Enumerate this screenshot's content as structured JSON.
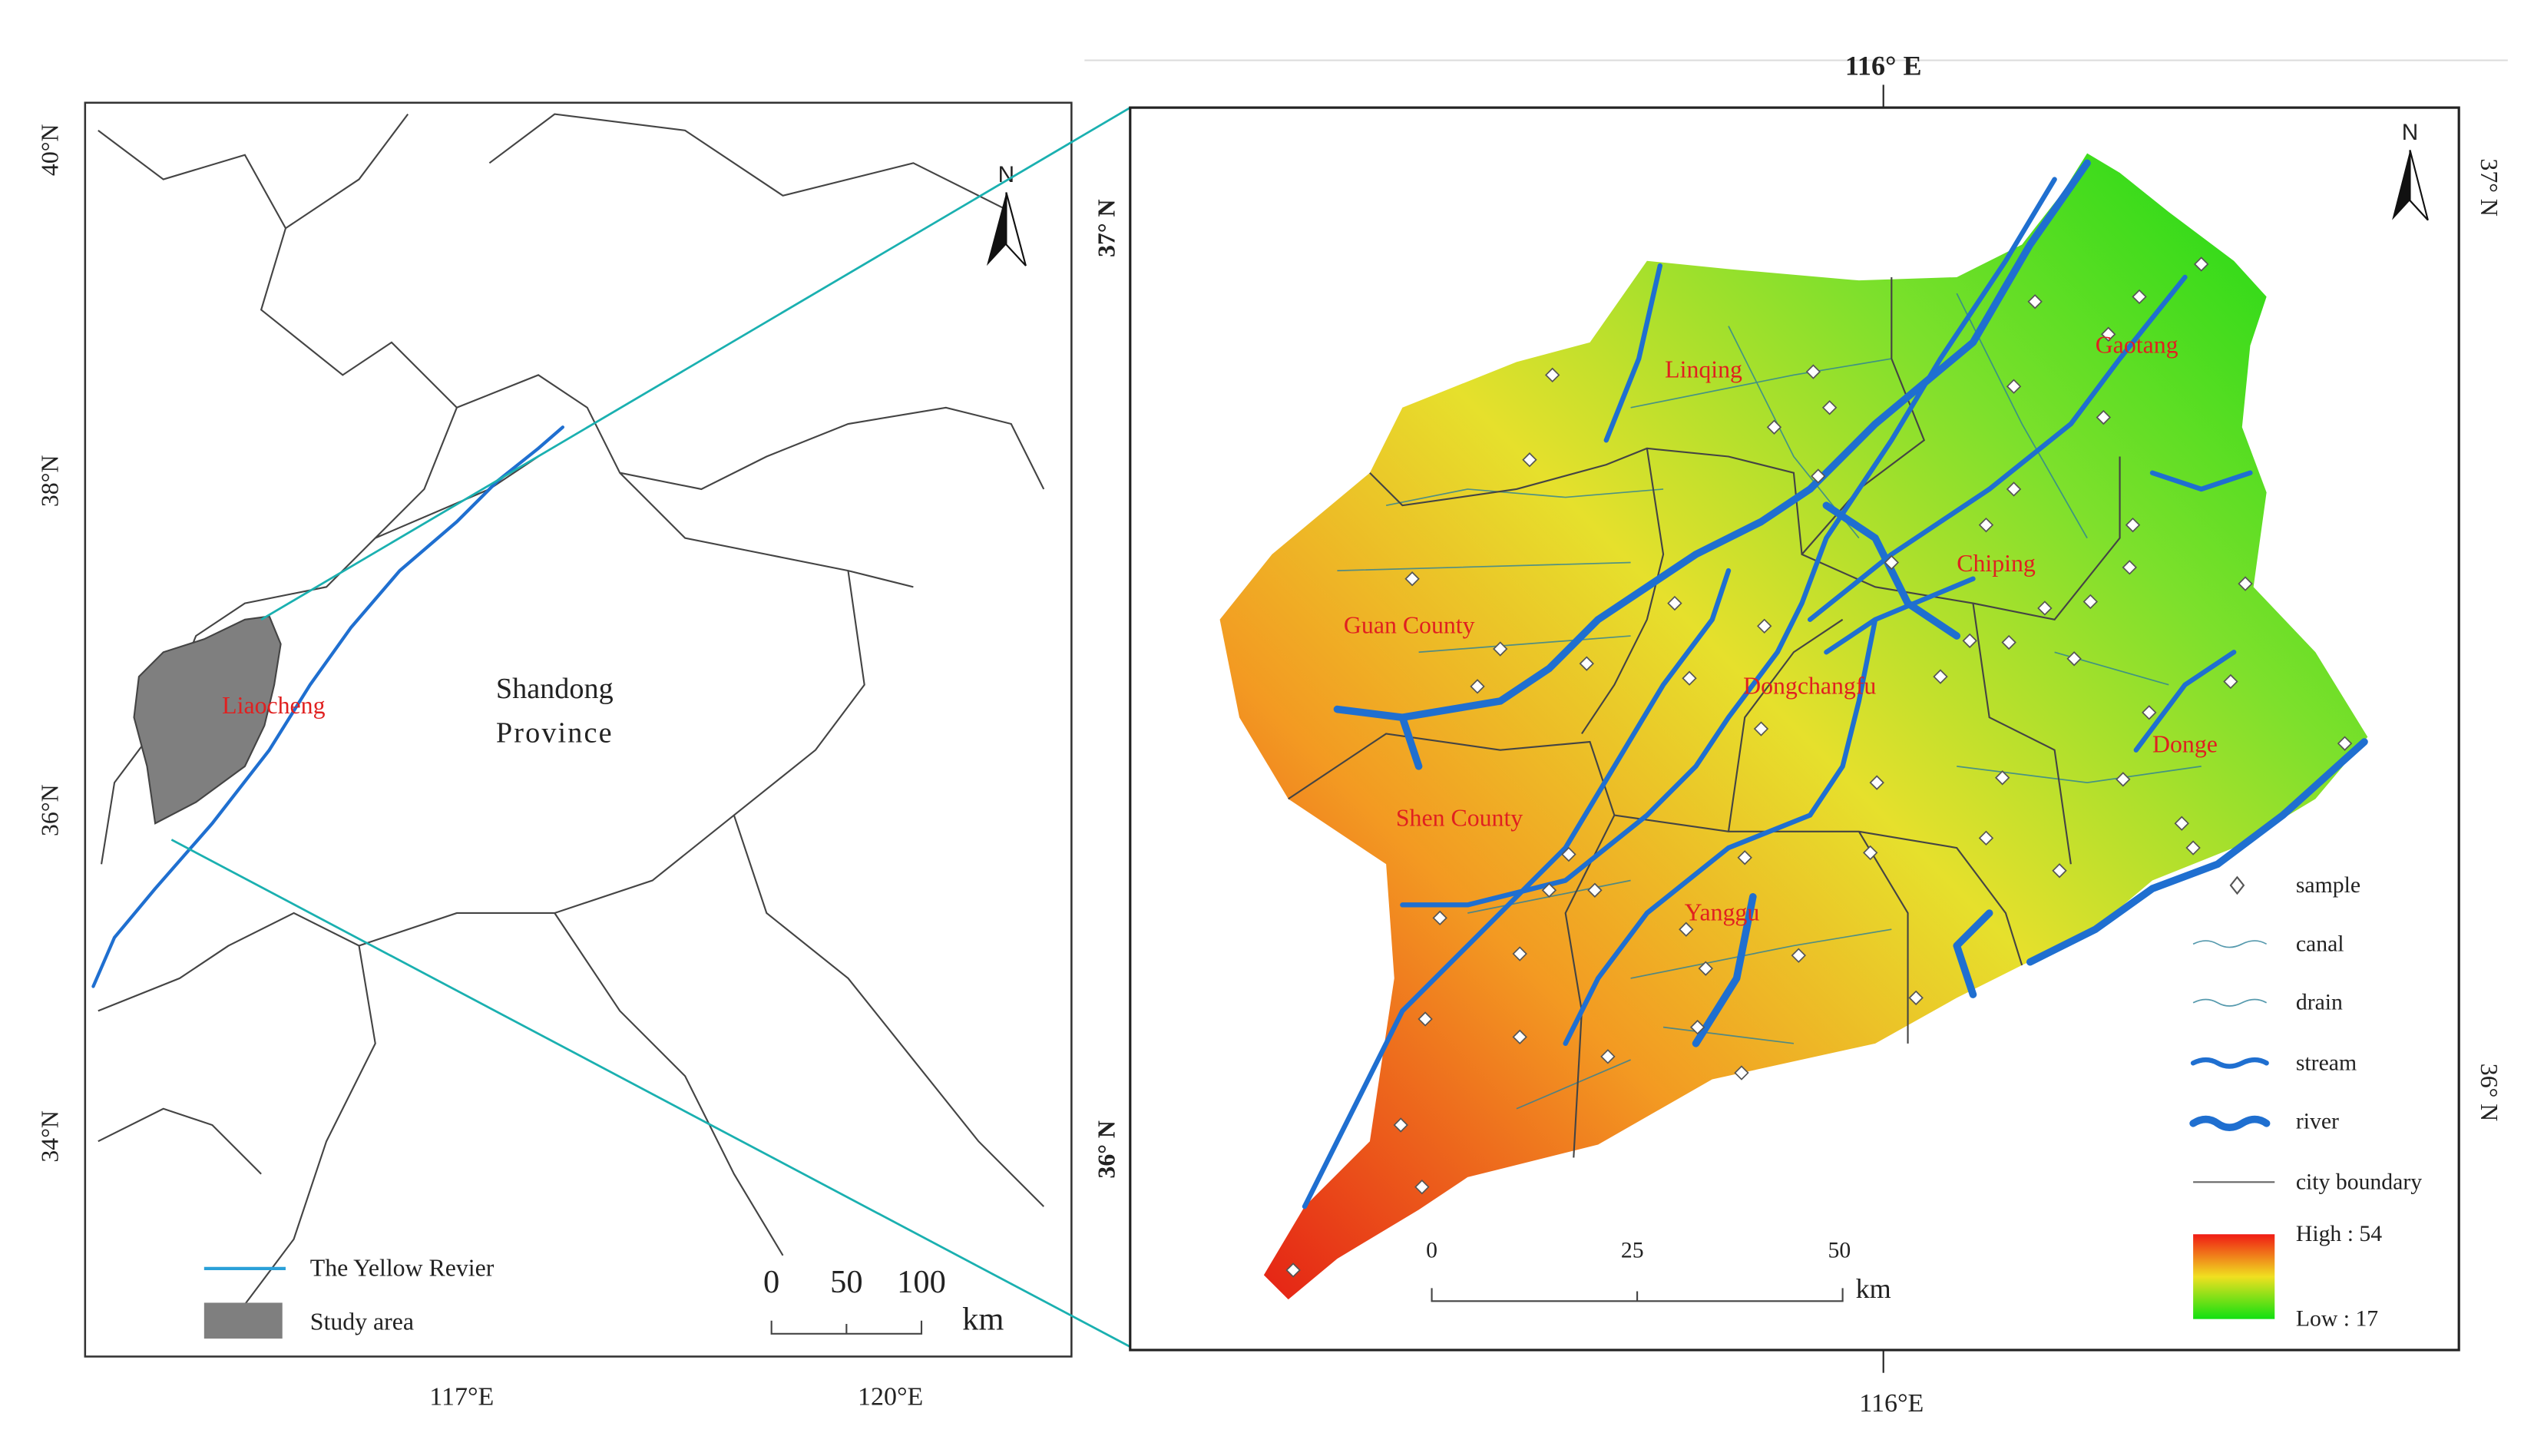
{
  "left_map": {
    "lat_labels": [
      "40°N",
      "38°N",
      "36°N",
      "34°N"
    ],
    "lon_labels": [
      "117°E",
      "120°E"
    ],
    "north": "N",
    "province": [
      "Shandong",
      "Province"
    ],
    "study_label": "Liaocheng",
    "legend": [
      "The Yellow Revier",
      "Study area"
    ],
    "scale_labels": [
      "0",
      "50",
      "100"
    ],
    "scale_unit": "km"
  },
  "right_map": {
    "top_lon": "116° E",
    "bottom_lon": "116°E",
    "left_lat": [
      "37° N",
      "36° N"
    ],
    "right_lat": [
      "37° N",
      "36° N"
    ],
    "north": "N",
    "counties": [
      "Linqing",
      "Gaotang",
      "Chiping",
      "Guan County",
      "Dongchangfu",
      "Donge",
      "Shen County",
      "Yanggu"
    ],
    "legend": [
      "sample",
      "canal",
      "drain",
      "stream",
      "river",
      "city boundary"
    ],
    "color_high": "High : 54",
    "color_low": "Low : 17",
    "scale_labels": [
      "0",
      "25",
      "50"
    ],
    "scale_unit": "km"
  }
}
